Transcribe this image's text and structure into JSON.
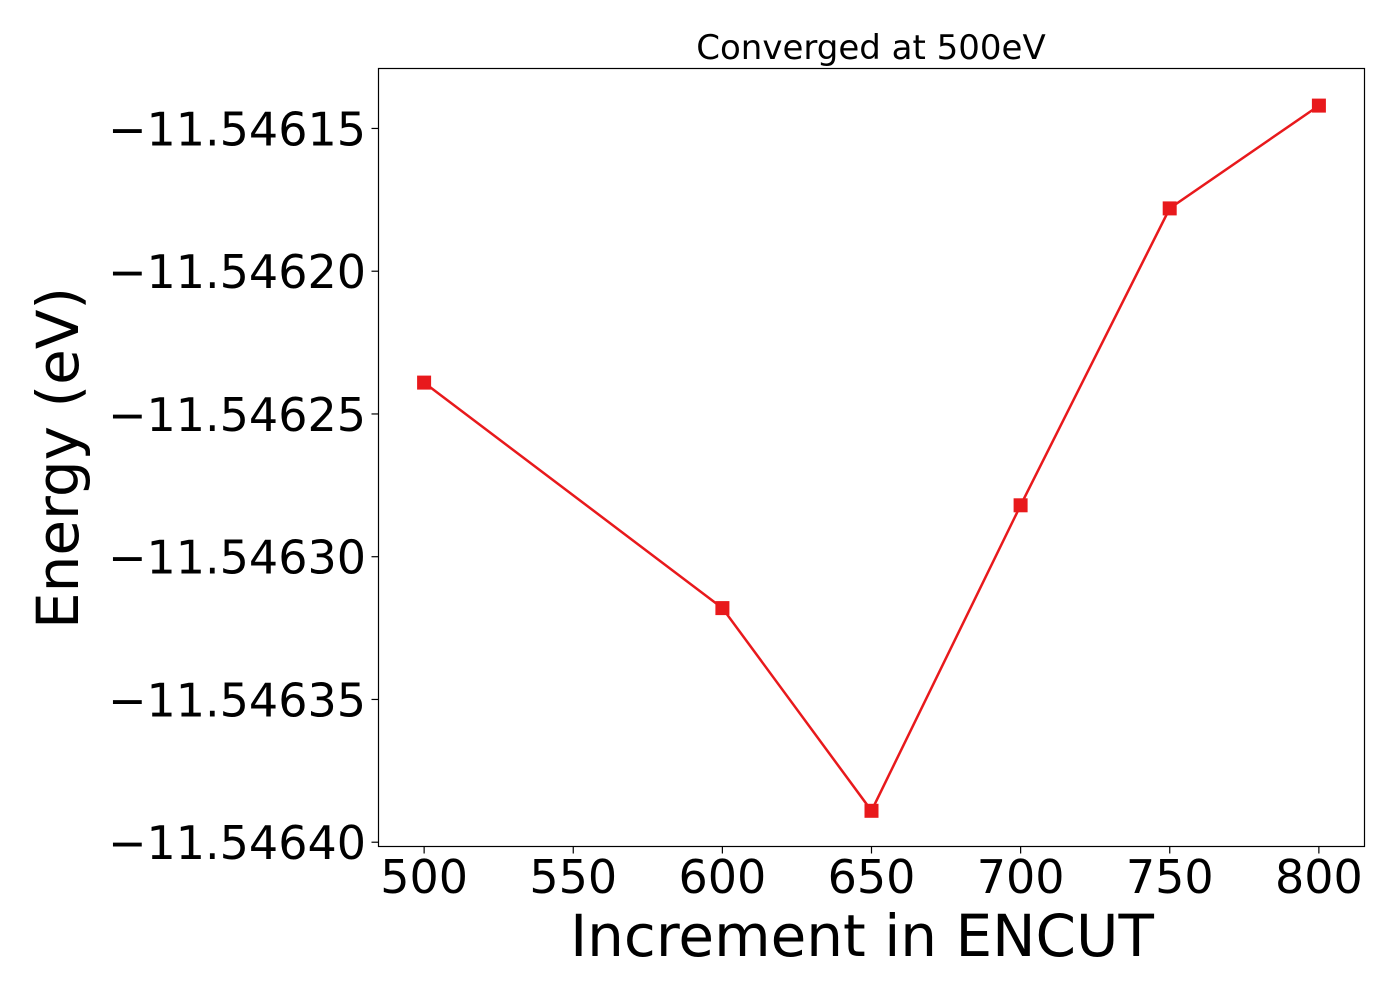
{
  "chart_data": {
    "type": "line",
    "title": "Converged at 500eV",
    "xlabel": "Increment in ENCUT",
    "ylabel": "Energy (eV)",
    "x": [
      500,
      600,
      650,
      700,
      750,
      800
    ],
    "series": [
      {
        "values": [
          -11.546239,
          -11.546318,
          -11.546389,
          -11.546282,
          -11.546178,
          -11.546142
        ],
        "color": "#e8191c",
        "marker": "square"
      }
    ],
    "xticks": [
      500,
      550,
      600,
      650,
      700,
      750,
      800
    ],
    "xtick_labels": [
      "500",
      "550",
      "600",
      "650",
      "700",
      "750",
      "800"
    ],
    "yticks": [
      -11.54615,
      -11.5462,
      -11.54625,
      -11.5463,
      -11.54635,
      -11.5464
    ],
    "ytick_labels": [
      "−11.54615",
      "−11.54620",
      "−11.54625",
      "−11.54630",
      "−11.54635",
      "−11.54640"
    ],
    "xlim": [
      484.7,
      815.3
    ],
    "ylim": [
      -11.5464015,
      -11.546129
    ],
    "grid": false,
    "legend": false
  }
}
